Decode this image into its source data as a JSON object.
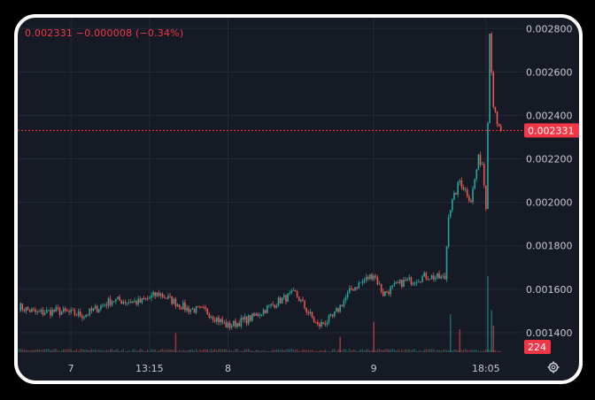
{
  "header": {
    "legend": "0.002331 −0.000008 (−0.34%)"
  },
  "colors": {
    "background": "#161a25",
    "grid": "#232838",
    "up": "#26a69a",
    "down": "#ef5350",
    "price_line": "#f23645",
    "axis_text": "#c7c9d1"
  },
  "icons": {
    "settings": "gear-icon"
  },
  "chart_data": {
    "type": "candlestick",
    "title": "",
    "last_price": 0.002331,
    "last_price_label": "0.002331",
    "volume_label": "224",
    "ylim": [
      0.00131,
      0.00285
    ],
    "y_ticks": [
      0.0014,
      0.0016,
      0.0018,
      0.002,
      0.0022,
      0.0024,
      0.0026,
      0.0028
    ],
    "y_tick_labels": [
      "0.001400",
      "0.001600",
      "0.001800",
      "0.002000",
      "0.002200",
      "0.002400",
      "0.002600",
      "0.002800"
    ],
    "x_ticks": [
      {
        "label": "7",
        "index": 28
      },
      {
        "label": "13:15",
        "index": 70
      },
      {
        "label": "8",
        "index": 112
      },
      {
        "label": "9",
        "index": 190
      },
      {
        "label": "18:05",
        "index": 250
      }
    ],
    "grid": true,
    "candle_count": 270,
    "close_keypoints": [
      [
        0,
        0.00152
      ],
      [
        10,
        0.00149
      ],
      [
        20,
        0.0015
      ],
      [
        35,
        0.00148
      ],
      [
        50,
        0.00155
      ],
      [
        65,
        0.00154
      ],
      [
        75,
        0.00158
      ],
      [
        90,
        0.00151
      ],
      [
        100,
        0.0015
      ],
      [
        112,
        0.00143
      ],
      [
        125,
        0.00147
      ],
      [
        140,
        0.00155
      ],
      [
        148,
        0.00158
      ],
      [
        160,
        0.00143
      ],
      [
        168,
        0.00147
      ],
      [
        178,
        0.0016
      ],
      [
        190,
        0.00167
      ],
      [
        195,
        0.00158
      ],
      [
        205,
        0.00163
      ],
      [
        218,
        0.00166
      ],
      [
        228,
        0.00165
      ],
      [
        230,
        0.00195
      ],
      [
        236,
        0.0021
      ],
      [
        242,
        0.00201
      ],
      [
        246,
        0.0022
      ],
      [
        248,
        0.00218
      ],
      [
        250,
        0.00199
      ],
      [
        252,
        0.00278
      ],
      [
        254,
        0.00245
      ],
      [
        256,
        0.00235
      ],
      [
        258,
        0.002331
      ]
    ],
    "volume_spikes": [
      {
        "index": 84,
        "value": 0.25
      },
      {
        "index": 172,
        "value": 0.2
      },
      {
        "index": 190,
        "value": 0.4
      },
      {
        "index": 231,
        "value": 0.5
      },
      {
        "index": 236,
        "value": 0.3
      },
      {
        "index": 251,
        "value": 1.0
      },
      {
        "index": 253,
        "value": 0.55
      },
      {
        "index": 254,
        "value": 0.35
      }
    ]
  }
}
